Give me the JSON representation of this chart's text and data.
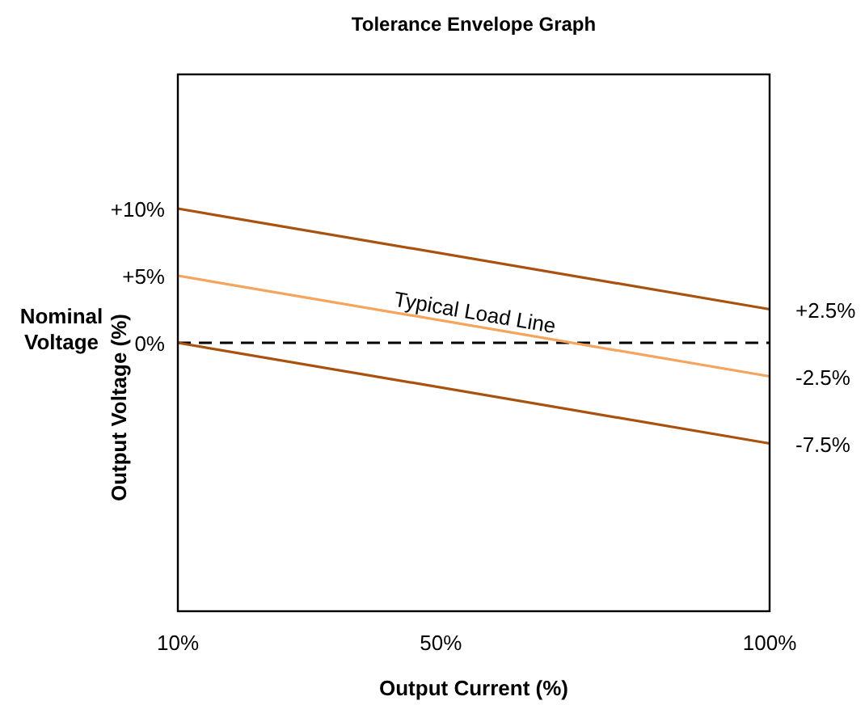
{
  "chart_data": {
    "type": "line",
    "title": "Tolerance Envelope Graph",
    "xlabel": "Output Current (%)",
    "ylabel": "Output Voltage (%)",
    "x": [
      10,
      100
    ],
    "series": [
      {
        "color": "#a9520f",
        "values": [
          10,
          2.5
        ]
      },
      {
        "name": "Typical Load Line",
        "color": "#f4a45c",
        "values": [
          5,
          -2.5
        ]
      },
      {
        "color": "#a9520f",
        "values": [
          0,
          -7.5
        ]
      }
    ],
    "xlim": [
      10,
      100
    ],
    "xticks": [
      {
        "value": 10,
        "label": "10%"
      },
      {
        "value": 50,
        "label": "50%"
      },
      {
        "value": 100,
        "label": "100%"
      }
    ],
    "ylim": [
      -20,
      20
    ],
    "yticks": [
      {
        "value": 10,
        "label": "+10%"
      },
      {
        "value": 5,
        "label": "+5%"
      },
      {
        "value": 0,
        "label": "0%"
      }
    ],
    "ref_lines": [
      {
        "axis": "y",
        "value": 0,
        "color": "#000000",
        "line_style": "dashed"
      }
    ],
    "y2lim": [
      -20,
      20
    ],
    "y2ticks": [
      {
        "value": 2.5,
        "label": "+2.5%"
      },
      {
        "value": -2.5,
        "label": "-2.5%"
      },
      {
        "value": -7.5,
        "label": "-7.5%"
      }
    ],
    "annotations": [
      "Nominal Voltage"
    ],
    "grid": false,
    "marker": "none",
    "line_style": "solid"
  }
}
